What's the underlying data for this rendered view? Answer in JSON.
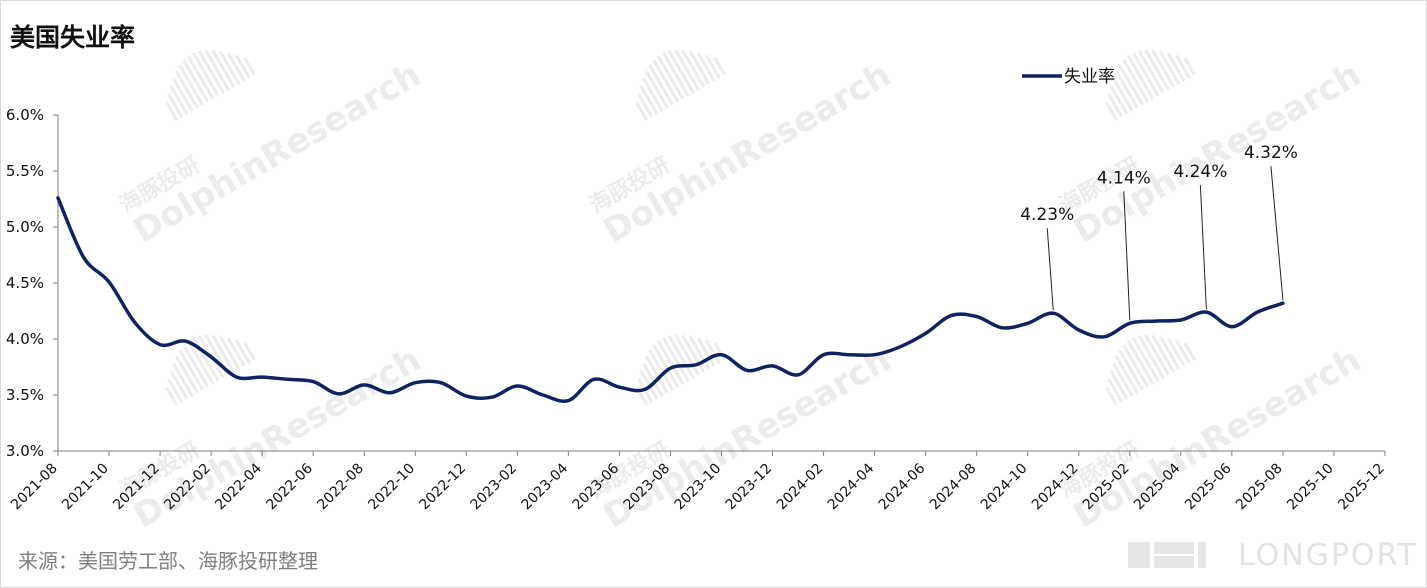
{
  "title": "美国失业率",
  "source": "来源：美国劳工部、海豚投研整理",
  "watermark": {
    "text_en": "DolphinResearch",
    "text_cn": "海豚投研",
    "brand": "LONGPORT"
  },
  "colors": {
    "line": "#0d2461",
    "axis": "#7f7f7f",
    "text": "#111111",
    "watermark": "#ececec"
  },
  "chart_data": {
    "type": "line",
    "title": "美国失业率",
    "xlabel": "",
    "ylabel": "",
    "ylim": [
      3.0,
      6.0
    ],
    "y_ticks": [
      "6.0%",
      "5.5%",
      "5.0%",
      "4.5%",
      "4.0%",
      "3.5%",
      "3.0%"
    ],
    "y_tick_values": [
      6.0,
      5.5,
      5.0,
      4.5,
      4.0,
      3.5,
      3.0
    ],
    "x_ticks": [
      "2021-08",
      "2021-10",
      "2021-12",
      "2022-02",
      "2022-04",
      "2022-06",
      "2022-08",
      "2022-10",
      "2022-12",
      "2023-02",
      "2023-04",
      "2023-06",
      "2023-08",
      "2023-10",
      "2023-12",
      "2024-02",
      "2024-04",
      "2024-06",
      "2024-08",
      "2024-10",
      "2024-12",
      "2025-02",
      "2025-04",
      "2025-06",
      "2025-08",
      "2025-10",
      "2025-12"
    ],
    "legend": {
      "position": "top-right",
      "entries": [
        "失业率"
      ]
    },
    "grid": false,
    "series": [
      {
        "name": "失业率",
        "x": [
          "2021-08",
          "2021-09",
          "2021-10",
          "2021-11",
          "2021-12",
          "2022-01",
          "2022-02",
          "2022-03",
          "2022-04",
          "2022-05",
          "2022-06",
          "2022-07",
          "2022-08",
          "2022-09",
          "2022-10",
          "2022-11",
          "2022-12",
          "2023-01",
          "2023-02",
          "2023-03",
          "2023-04",
          "2023-05",
          "2023-06",
          "2023-07",
          "2023-08",
          "2023-09",
          "2023-10",
          "2023-11",
          "2023-12",
          "2024-01",
          "2024-02",
          "2024-03",
          "2024-04",
          "2024-05",
          "2024-06",
          "2024-07",
          "2024-08",
          "2024-09",
          "2024-10",
          "2024-11",
          "2024-12",
          "2025-01",
          "2025-02",
          "2025-03",
          "2025-04",
          "2025-05",
          "2025-06",
          "2025-07",
          "2025-08"
        ],
        "values": [
          5.26,
          4.73,
          4.51,
          4.15,
          3.95,
          3.98,
          3.84,
          3.66,
          3.66,
          3.64,
          3.62,
          3.51,
          3.59,
          3.52,
          3.61,
          3.61,
          3.49,
          3.48,
          3.58,
          3.5,
          3.45,
          3.64,
          3.57,
          3.55,
          3.74,
          3.77,
          3.86,
          3.72,
          3.76,
          3.68,
          3.86,
          3.86,
          3.86,
          3.93,
          4.05,
          4.21,
          4.2,
          4.1,
          4.14,
          4.23,
          4.08,
          4.02,
          4.14,
          4.16,
          4.17,
          4.24,
          4.11,
          4.24,
          4.32
        ]
      }
    ],
    "annotations": [
      {
        "label": "4.23%",
        "x": "2024-11",
        "y": 4.23
      },
      {
        "label": "4.14%",
        "x": "2025-02",
        "y": 4.14
      },
      {
        "label": "4.24%",
        "x": "2025-05",
        "y": 4.24
      },
      {
        "label": "4.32%",
        "x": "2025-08",
        "y": 4.32
      }
    ]
  }
}
